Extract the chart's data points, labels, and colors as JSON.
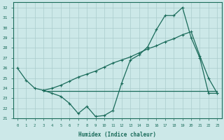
{
  "xlabel": "Humidex (Indice chaleur)",
  "background_color": "#cce8e8",
  "grid_color": "#aacccc",
  "line_color": "#1a6b5a",
  "xlim": [
    -0.5,
    23.5
  ],
  "ylim": [
    21,
    32.5
  ],
  "yticks": [
    21,
    22,
    23,
    24,
    25,
    26,
    27,
    28,
    29,
    30,
    31,
    32
  ],
  "xticks": [
    0,
    1,
    2,
    3,
    4,
    5,
    6,
    7,
    8,
    9,
    10,
    11,
    12,
    13,
    14,
    15,
    16,
    17,
    18,
    19,
    20,
    21,
    22,
    23
  ],
  "line1_x": [
    0,
    1,
    2,
    3,
    4,
    5,
    6,
    7,
    8,
    9,
    10,
    11,
    12,
    13,
    14,
    15,
    16,
    17,
    18,
    19,
    20,
    21,
    22,
    23
  ],
  "line1_y": [
    26.0,
    24.8,
    24.0,
    23.8,
    23.5,
    23.2,
    22.5,
    21.5,
    22.2,
    21.2,
    21.3,
    21.8,
    24.5,
    26.8,
    27.3,
    28.1,
    29.8,
    31.2,
    31.2,
    32.0,
    29.0,
    27.0,
    23.5,
    23.5
  ],
  "line2_x": [
    3,
    23
  ],
  "line2_y": [
    23.7,
    23.7
  ],
  "line3_x": [
    3,
    4,
    5,
    6,
    7,
    8,
    9,
    10,
    11,
    12,
    13,
    14,
    15,
    16,
    17,
    18,
    19,
    20,
    21,
    22,
    23
  ],
  "line3_y": [
    23.8,
    24.0,
    24.3,
    24.7,
    25.1,
    25.4,
    25.7,
    26.1,
    26.5,
    26.8,
    27.1,
    27.5,
    27.9,
    28.2,
    28.6,
    28.9,
    29.3,
    29.6,
    27.2,
    25.0,
    23.5
  ]
}
